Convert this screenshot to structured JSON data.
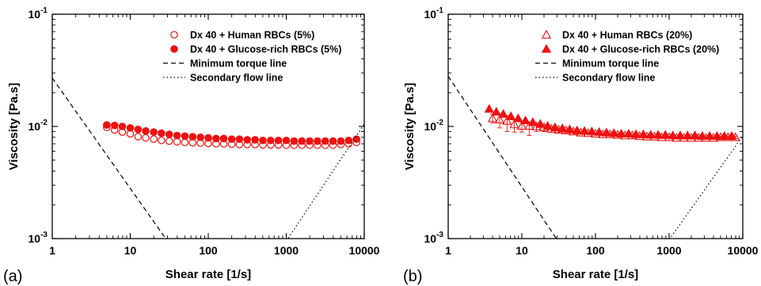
{
  "chart_data": [
    {
      "type": "scatter",
      "panel_label": "(a)",
      "xlabel": "Shear rate [1/s]",
      "ylabel": "Viscosity [Pa.s]",
      "xscale": "log",
      "yscale": "log",
      "xlim": [
        1,
        10000
      ],
      "ylim": [
        0.001,
        0.1
      ],
      "x_ticks": [
        1,
        10,
        100,
        1000,
        10000
      ],
      "x_tick_labels": [
        "1",
        "10",
        "100",
        "1000",
        "10000"
      ],
      "y_ticks": [
        0.001,
        0.01,
        0.1
      ],
      "y_tick_labels": [
        [
          "10",
          "-3"
        ],
        [
          "10",
          "-2"
        ],
        [
          "10",
          "-1"
        ]
      ],
      "legend_position": "top-center",
      "series": [
        {
          "name": "Dx 40 + Human RBCs (5%)",
          "marker": "circle-open",
          "color": "#ee1111",
          "x": [
            5.0,
            6.3,
            7.9,
            10.0,
            12.6,
            15.8,
            20.0,
            25.1,
            31.6,
            39.8,
            50.1,
            63.1,
            79.4,
            100,
            126,
            158,
            200,
            251,
            316,
            398,
            501,
            631,
            794,
            1000,
            1259,
            1585,
            1995,
            2512,
            3162,
            3981,
            5012,
            6310,
            7943
          ],
          "y": [
            0.0098,
            0.0093,
            0.0089,
            0.0086,
            0.0081,
            0.0079,
            0.0077,
            0.0075,
            0.0074,
            0.0073,
            0.0072,
            0.00715,
            0.0071,
            0.00705,
            0.007,
            0.007,
            0.00695,
            0.0069,
            0.0069,
            0.0069,
            0.00685,
            0.00685,
            0.00685,
            0.0068,
            0.0068,
            0.0068,
            0.0068,
            0.0068,
            0.0068,
            0.0068,
            0.0069,
            0.007,
            0.0072
          ]
        },
        {
          "name": "Dx 40 + Glucose-rich RBCs (5%)",
          "marker": "circle-filled",
          "color": "#ee1111",
          "x": [
            5.0,
            6.3,
            7.9,
            10.0,
            12.6,
            15.8,
            20.0,
            25.1,
            31.6,
            39.8,
            50.1,
            63.1,
            79.4,
            100,
            126,
            158,
            200,
            251,
            316,
            398,
            501,
            631,
            794,
            1000,
            1259,
            1585,
            1995,
            2512,
            3162,
            3981,
            5012,
            6310,
            7943
          ],
          "y": [
            0.0103,
            0.0102,
            0.01,
            0.0097,
            0.0094,
            0.0091,
            0.0089,
            0.0087,
            0.0085,
            0.0083,
            0.0082,
            0.0081,
            0.008,
            0.0079,
            0.0078,
            0.0078,
            0.0077,
            0.0077,
            0.0076,
            0.0076,
            0.0075,
            0.0075,
            0.0075,
            0.0075,
            0.0074,
            0.0074,
            0.0074,
            0.0074,
            0.0074,
            0.0074,
            0.0074,
            0.0075,
            0.0077
          ]
        },
        {
          "name": "Minimum torque line",
          "style": "dashed",
          "color": "#000000",
          "x": [
            1,
            30
          ],
          "y": [
            0.027,
            0.00095
          ]
        },
        {
          "name": "Secondary flow line",
          "style": "dotted",
          "color": "#000000",
          "x": [
            1000,
            10000
          ],
          "y": [
            0.00095,
            0.0105
          ]
        }
      ]
    },
    {
      "type": "scatter",
      "panel_label": "(b)",
      "xlabel": "Shear rate [1/s]",
      "ylabel": "Viscosity [Pa.s]",
      "xscale": "log",
      "yscale": "log",
      "xlim": [
        1,
        10000
      ],
      "ylim": [
        0.001,
        0.1
      ],
      "x_ticks": [
        1,
        10,
        100,
        1000,
        10000
      ],
      "x_tick_labels": [
        "1",
        "10",
        "100",
        "1000",
        "10000"
      ],
      "y_ticks": [
        0.001,
        0.01,
        0.1
      ],
      "y_tick_labels": [
        [
          "10",
          "-3"
        ],
        [
          "10",
          "-2"
        ],
        [
          "10",
          "-1"
        ]
      ],
      "legend_position": "top-center",
      "series": [
        {
          "name": "Dx 40 + Human RBCs (20%)",
          "marker": "triangle-open",
          "color": "#ee1111",
          "x": [
            4.0,
            5.0,
            6.3,
            7.9,
            10.0,
            12.6,
            15.8,
            20.0,
            25.1,
            31.6,
            39.8,
            50.1,
            63.1,
            79.4,
            100,
            126,
            158,
            200,
            251,
            316,
            398,
            501,
            631,
            794,
            1000,
            1259,
            1585,
            1995,
            2512,
            3162,
            3981,
            5012,
            6310,
            7943
          ],
          "y": [
            0.0118,
            0.0115,
            0.0112,
            0.0104,
            0.0101,
            0.0101,
            0.01,
            0.0098,
            0.0095,
            0.0093,
            0.0092,
            0.009,
            0.0088,
            0.0087,
            0.0086,
            0.0085,
            0.0085,
            0.0084,
            0.0083,
            0.0083,
            0.0082,
            0.0081,
            0.0081,
            0.008,
            0.008,
            0.0079,
            0.0079,
            0.0079,
            0.0079,
            0.0079,
            0.0079,
            0.008,
            0.008,
            0.008
          ],
          "error_low": [
            0.0011,
            0.0018,
            0.0022,
            0.0015,
            0.0012,
            0.0018,
            0.001,
            0.0008,
            0.0006,
            0.0005,
            0.0004,
            0.0003,
            0.0003,
            0.0002,
            0.0002,
            0.0002,
            0.0002,
            0.0002,
            0.0002,
            0.0002,
            0.0002,
            0.0002,
            0.0002,
            0.0002,
            0.0002,
            0.0002,
            0.0002,
            0.0002,
            0.0002,
            0.0002,
            0.0002,
            0.0002,
            0.0002,
            0.0002
          ],
          "error_high": [
            0.0011,
            0.0012,
            0.0013,
            0.001,
            0.0008,
            0.0006,
            0.0005,
            0.0004,
            0.0003,
            0.0003,
            0.0002,
            0.0002,
            0.0002,
            0.0002,
            0.0002,
            0.0002,
            0.0002,
            0.0002,
            0.0002,
            0.0002,
            0.0002,
            0.0002,
            0.0002,
            0.0002,
            0.0002,
            0.0002,
            0.0002,
            0.0002,
            0.0002,
            0.0002,
            0.0002,
            0.0002,
            0.0002,
            0.0002
          ]
        },
        {
          "name": "Dx 40 + Glucose-rich RBCs (20%)",
          "marker": "triangle-filled",
          "color": "#ee1111",
          "x": [
            3.6,
            4.5,
            5.6,
            7.1,
            8.9,
            11.2,
            14.1,
            17.8,
            22.4,
            28.2,
            35.5,
            44.7,
            56.2,
            70.8,
            89.1,
            112,
            141,
            178,
            224,
            282,
            355,
            447,
            562,
            708,
            891,
            1122,
            1413,
            1778,
            2239,
            2818,
            3548,
            4467,
            5623,
            7079
          ],
          "y": [
            0.0143,
            0.0135,
            0.0129,
            0.0123,
            0.0118,
            0.0113,
            0.0109,
            0.0105,
            0.0101,
            0.0098,
            0.0096,
            0.0094,
            0.0092,
            0.0091,
            0.009,
            0.0089,
            0.0088,
            0.0087,
            0.0086,
            0.0086,
            0.0085,
            0.0085,
            0.0084,
            0.0084,
            0.0084,
            0.0083,
            0.0083,
            0.0083,
            0.0083,
            0.0082,
            0.0082,
            0.0082,
            0.0082,
            0.0082
          ]
        },
        {
          "name": "Minimum torque line",
          "style": "dashed",
          "color": "#000000",
          "x": [
            1,
            30
          ],
          "y": [
            0.028,
            0.00098
          ]
        },
        {
          "name": "Secondary flow line",
          "style": "dotted",
          "color": "#000000",
          "x": [
            1000,
            10000
          ],
          "y": [
            0.00098,
            0.0082
          ]
        }
      ]
    }
  ]
}
